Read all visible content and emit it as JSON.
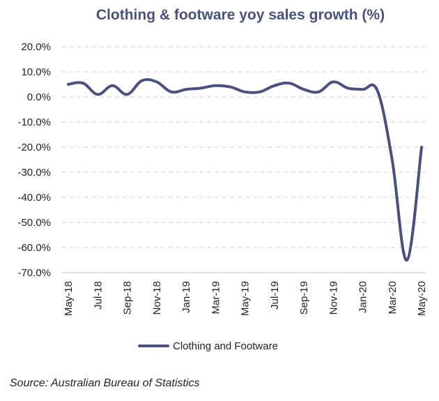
{
  "chart_data": {
    "type": "line",
    "title": "Clothing & footware yoy sales growth (%)",
    "xlabel": "",
    "ylabel": "",
    "ylim": [
      -70,
      20
    ],
    "y_ticks": [
      "20.0%",
      "10.0%",
      "0.0%",
      "-10.0%",
      "-20.0%",
      "-30.0%",
      "-40.0%",
      "-50.0%",
      "-60.0%",
      "-70.0%"
    ],
    "y_tick_values": [
      20,
      10,
      0,
      -10,
      -20,
      -30,
      -40,
      -50,
      -60,
      -70
    ],
    "x_tick_labels": [
      "May-18",
      "Jul-18",
      "Sep-18",
      "Nov-18",
      "Jan-19",
      "Mar-19",
      "May-19",
      "Jul-19",
      "Sep-19",
      "Nov-19",
      "Jan-20",
      "Mar-20",
      "May-20"
    ],
    "x": [
      "May-18",
      "Jun-18",
      "Jul-18",
      "Aug-18",
      "Sep-18",
      "Oct-18",
      "Nov-18",
      "Dec-18",
      "Jan-19",
      "Feb-19",
      "Mar-19",
      "Apr-19",
      "May-19",
      "Jun-19",
      "Jul-19",
      "Aug-19",
      "Sep-19",
      "Oct-19",
      "Nov-19",
      "Dec-19",
      "Jan-20",
      "Feb-20",
      "Mar-20",
      "Apr-20",
      "May-20"
    ],
    "grid": "horizontal dashed",
    "legend_position": "bottom",
    "series": [
      {
        "name": "Clothing and Footware",
        "color": "#4a5080",
        "values": [
          5.0,
          5.5,
          1.0,
          4.5,
          1.0,
          6.5,
          6.0,
          2.0,
          3.0,
          3.5,
          4.5,
          4.0,
          2.0,
          2.0,
          4.5,
          5.5,
          3.0,
          2.0,
          6.0,
          3.5,
          3.0,
          2.5,
          -25.0,
          -65.0,
          -20.0
        ]
      }
    ]
  },
  "source": "Source: Australian Bureau of Statistics"
}
